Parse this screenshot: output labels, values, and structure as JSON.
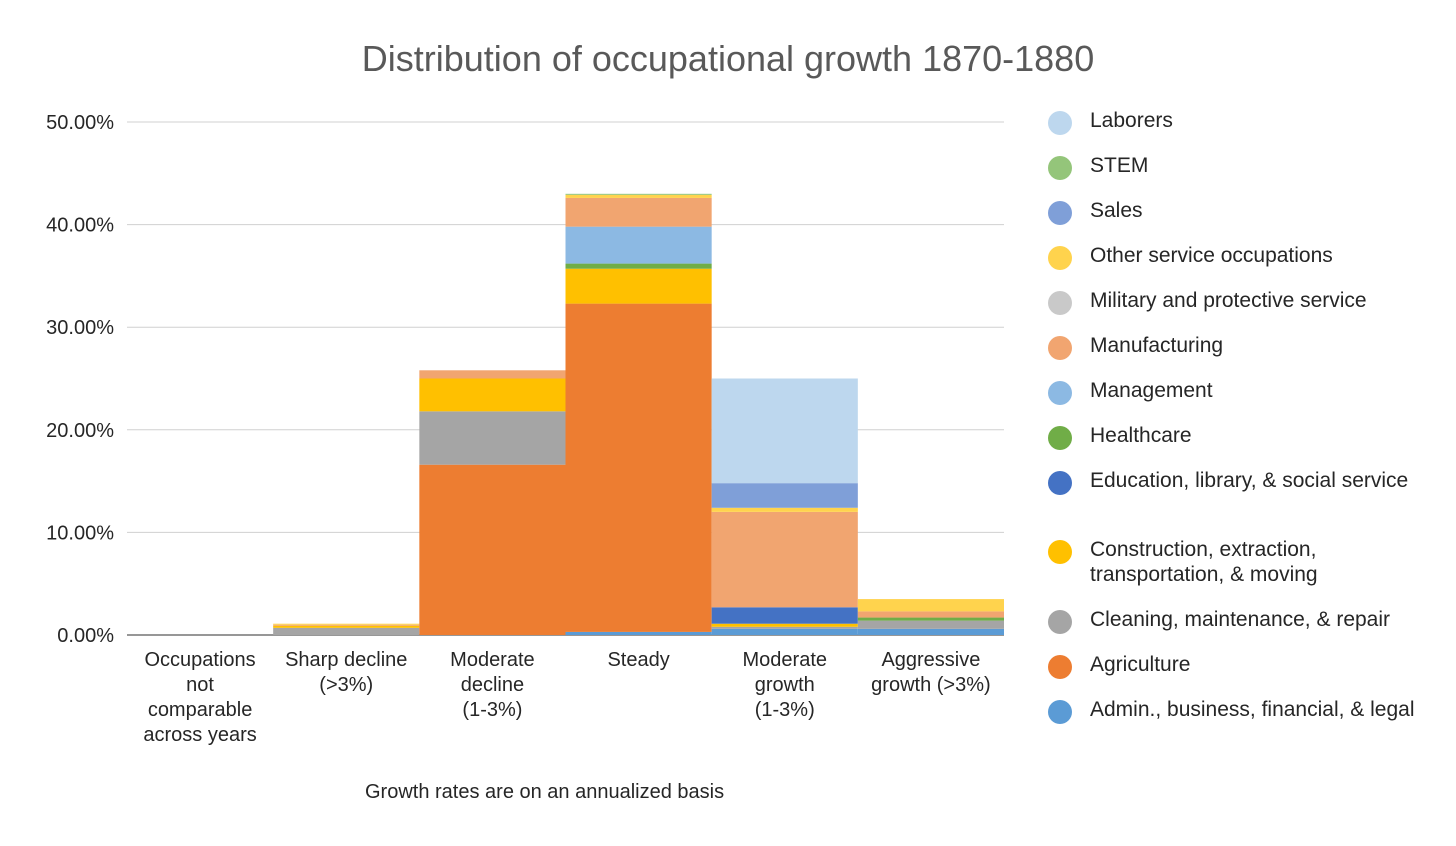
{
  "chart_data": {
    "type": "bar",
    "subtype": "stacked-histogram",
    "title": "Distribution of occupational growth 1870-1880",
    "xlabel": "Growth rates are on an annualized basis",
    "ylabel": "",
    "ylim": [
      0,
      0.5
    ],
    "yticks": [
      "0.00%",
      "10.00%",
      "20.00%",
      "30.00%",
      "40.00%",
      "50.00%"
    ],
    "grid": true,
    "legend_position": "right",
    "categories": [
      [
        "Occupations",
        "not",
        "comparable",
        "across years"
      ],
      [
        "Sharp decline",
        "(>3%)"
      ],
      [
        "Moderate",
        "decline",
        "(1-3%)"
      ],
      [
        "Steady"
      ],
      [
        "Moderate",
        "growth",
        "(1-3%)"
      ],
      [
        "Aggressive",
        "growth (>3%)"
      ]
    ],
    "series": [
      {
        "name": "Admin., business, financial, & legal",
        "color": "#5b9bd5",
        "values": [
          0,
          0.0,
          0.0,
          0.003,
          0.006,
          0.006
        ]
      },
      {
        "name": "Agriculture",
        "color": "#ed7d31",
        "values": [
          0,
          0.0,
          0.166,
          0.32,
          0.0,
          0.0
        ]
      },
      {
        "name": "Cleaning, maintenance, & repair",
        "color": "#a5a5a5",
        "values": [
          0,
          0.007,
          0.052,
          0.0,
          0.002,
          0.008
        ]
      },
      {
        "name": "Construction, extraction, transportation, & moving",
        "color": "#ffc000",
        "values": [
          0,
          0.002,
          0.032,
          0.034,
          0.003,
          0.0
        ]
      },
      {
        "name": "Education, library, & social service",
        "color": "#4472c4",
        "values": [
          0,
          0.0,
          0.0,
          0.0,
          0.016,
          0.0
        ]
      },
      {
        "name": "Healthcare",
        "color": "#70ad47",
        "values": [
          0,
          0.0,
          0.0,
          0.005,
          0.0,
          0.003
        ]
      },
      {
        "name": "Management",
        "color": "#8cb9e3",
        "values": [
          0,
          0.0,
          0.0,
          0.036,
          0.0,
          0.0
        ]
      },
      {
        "name": "Manufacturing",
        "color": "#f1a570",
        "values": [
          0,
          0.001,
          0.008,
          0.028,
          0.093,
          0.006
        ]
      },
      {
        "name": "Military and protective service",
        "color": "#c9c9c9",
        "values": [
          0,
          0.0,
          0.0,
          0.0,
          0.0,
          0.0
        ]
      },
      {
        "name": "Other service occupations",
        "color": "#ffd34d",
        "values": [
          0,
          0.001,
          0.0,
          0.003,
          0.004,
          0.012
        ]
      },
      {
        "name": "Sales",
        "color": "#7f9fd8",
        "values": [
          0,
          0.0,
          0.0,
          0.0,
          0.024,
          0.0
        ]
      },
      {
        "name": "STEM",
        "color": "#94c57a",
        "values": [
          0,
          0.0,
          0.0,
          0.001,
          0.0,
          0.0
        ]
      },
      {
        "name": "Laborers",
        "color": "#bdd7ee",
        "values": [
          0,
          0.0,
          0.0,
          0.0,
          0.102,
          0.0
        ]
      }
    ]
  }
}
